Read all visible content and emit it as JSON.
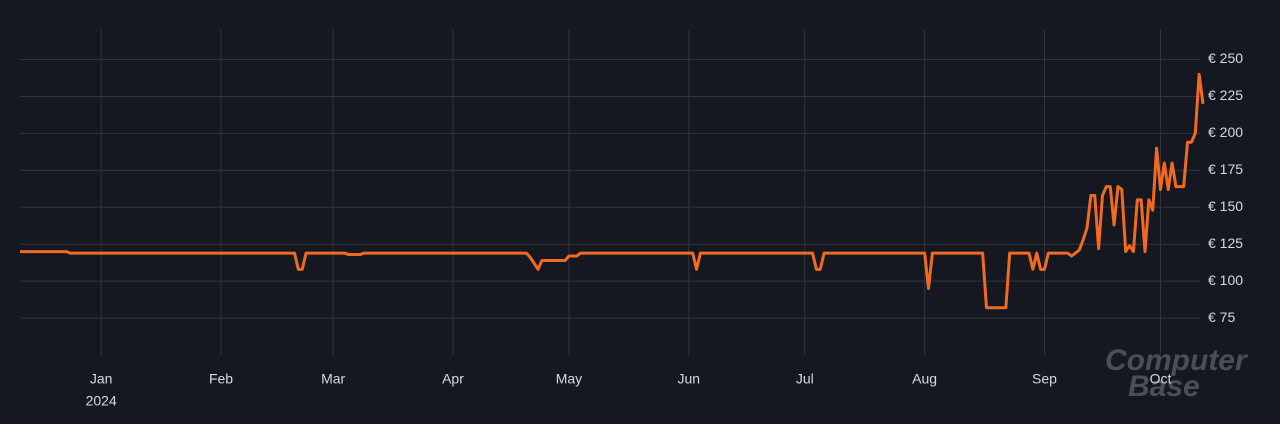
{
  "chart_data": {
    "type": "line",
    "categories": [
      null,
      null,
      null,
      null,
      null,
      null,
      null,
      null,
      null,
      null,
      null,
      null,
      null,
      null,
      null,
      null,
      null,
      null,
      null,
      null,
      null,
      "Jan",
      null,
      null,
      null,
      null,
      null,
      null,
      null,
      null,
      null,
      null,
      null,
      null,
      null,
      null,
      null,
      null,
      null,
      null,
      null,
      null,
      null,
      null,
      null,
      null,
      null,
      null,
      null,
      null,
      null,
      null,
      "Feb",
      null,
      null,
      null,
      null,
      null,
      null,
      null,
      null,
      null,
      null,
      null,
      null,
      null,
      null,
      null,
      null,
      null,
      null,
      null,
      null,
      null,
      null,
      null,
      null,
      null,
      null,
      null,
      null,
      "Mar",
      null,
      null,
      null,
      null,
      null,
      null,
      null,
      null,
      null,
      null,
      null,
      null,
      null,
      null,
      null,
      null,
      null,
      null,
      null,
      null,
      null,
      null,
      null,
      null,
      null,
      null,
      null,
      null,
      null,
      null,
      "Apr",
      null,
      null,
      null,
      null,
      null,
      null,
      null,
      null,
      null,
      null,
      null,
      null,
      null,
      null,
      null,
      null,
      null,
      null,
      null,
      null,
      null,
      null,
      null,
      null,
      null,
      null,
      null,
      null,
      null,
      "May",
      null,
      null,
      null,
      null,
      null,
      null,
      null,
      null,
      null,
      null,
      null,
      null,
      null,
      null,
      null,
      null,
      null,
      null,
      null,
      null,
      null,
      null,
      null,
      null,
      null,
      null,
      null,
      null,
      null,
      null,
      "Jun",
      null,
      null,
      null,
      null,
      null,
      null,
      null,
      null,
      null,
      null,
      null,
      null,
      null,
      null,
      null,
      null,
      null,
      null,
      null,
      null,
      null,
      null,
      null,
      null,
      null,
      null,
      null,
      null,
      null,
      "Jul",
      null,
      null,
      null,
      null,
      null,
      null,
      null,
      null,
      null,
      null,
      null,
      null,
      null,
      null,
      null,
      null,
      null,
      null,
      null,
      null,
      null,
      null,
      null,
      null,
      null,
      null,
      null,
      null,
      null,
      null,
      "Aug",
      null,
      null,
      null,
      null,
      null,
      null,
      null,
      null,
      null,
      null,
      null,
      null,
      null,
      null,
      null,
      null,
      null,
      null,
      null,
      null,
      null,
      null,
      null,
      null,
      null,
      null,
      null,
      null,
      null,
      null,
      "Sep",
      null,
      null,
      null,
      null,
      null,
      null,
      null,
      null,
      null,
      null,
      null,
      null,
      null,
      null,
      null,
      null,
      null,
      null,
      null,
      null,
      null,
      null,
      null,
      null,
      null,
      null,
      null,
      null,
      null,
      "Oct",
      null,
      null,
      null,
      null,
      null,
      null,
      null,
      null,
      null,
      null,
      null
    ],
    "year_label": "2024",
    "series": [
      {
        "color": "#f26a21",
        "values": [
          120,
          120,
          120,
          120,
          120,
          120,
          120,
          120,
          120,
          120,
          120,
          120,
          120,
          119,
          119,
          119,
          119,
          119,
          119,
          119,
          119,
          119,
          119,
          119,
          119,
          119,
          119,
          119,
          119,
          119,
          119,
          119,
          119,
          119,
          119,
          119,
          119,
          119,
          119,
          119,
          119,
          119,
          119,
          119,
          119,
          119,
          119,
          119,
          119,
          119,
          119,
          119,
          119,
          119,
          119,
          119,
          119,
          119,
          119,
          119,
          119,
          119,
          119,
          119,
          119,
          119,
          119,
          119,
          119,
          119,
          119,
          119,
          108,
          108,
          119,
          119,
          119,
          119,
          119,
          119,
          119,
          119,
          119,
          119,
          119,
          118,
          118,
          118,
          118,
          119,
          119,
          119,
          119,
          119,
          119,
          119,
          119,
          119,
          119,
          119,
          119,
          119,
          119,
          119,
          119,
          119,
          119,
          119,
          119,
          119,
          119,
          119,
          119,
          119,
          119,
          119,
          119,
          119,
          119,
          119,
          119,
          119,
          119,
          119,
          119,
          119,
          119,
          119,
          119,
          119,
          119,
          119,
          116,
          112,
          108,
          114,
          114,
          114,
          114,
          114,
          114,
          114,
          117,
          117,
          117,
          119,
          119,
          119,
          119,
          119,
          119,
          119,
          119,
          119,
          119,
          119,
          119,
          119,
          119,
          119,
          119,
          119,
          119,
          119,
          119,
          119,
          119,
          119,
          119,
          119,
          119,
          119,
          119,
          119,
          119,
          108,
          119,
          119,
          119,
          119,
          119,
          119,
          119,
          119,
          119,
          119,
          119,
          119,
          119,
          119,
          119,
          119,
          119,
          119,
          119,
          119,
          119,
          119,
          119,
          119,
          119,
          119,
          119,
          119,
          119,
          119,
          108,
          108,
          119,
          119,
          119,
          119,
          119,
          119,
          119,
          119,
          119,
          119,
          119,
          119,
          119,
          119,
          119,
          119,
          119,
          119,
          119,
          119,
          119,
          119,
          119,
          119,
          119,
          119,
          119,
          95,
          119,
          119,
          119,
          119,
          119,
          119,
          119,
          119,
          119,
          119,
          119,
          119,
          119,
          119,
          82,
          82,
          82,
          82,
          82,
          82,
          119,
          119,
          119,
          119,
          119,
          119,
          108,
          119,
          108,
          108,
          119,
          119,
          119,
          119,
          119,
          119,
          117,
          119,
          121,
          128,
          136,
          158,
          158,
          122,
          158,
          164,
          164,
          138,
          164,
          162,
          120,
          124,
          120,
          155,
          155,
          120,
          155,
          148,
          190,
          162,
          180,
          162,
          180,
          164,
          164,
          164,
          194,
          194,
          200,
          240,
          220
        ]
      }
    ],
    "ylim": [
      50,
      270
    ],
    "yticks": [
      {
        "value": 75,
        "label": "€ 75"
      },
      {
        "value": 100,
        "label": "€ 100"
      },
      {
        "value": 125,
        "label": "€ 125"
      },
      {
        "value": 150,
        "label": "€ 150"
      },
      {
        "value": 175,
        "label": "€ 175"
      },
      {
        "value": 200,
        "label": "€ 200"
      },
      {
        "value": 225,
        "label": "€ 225"
      },
      {
        "value": 250,
        "label": "€ 250"
      }
    ],
    "grid": true,
    "watermark": [
      "Computer",
      "Base"
    ]
  }
}
